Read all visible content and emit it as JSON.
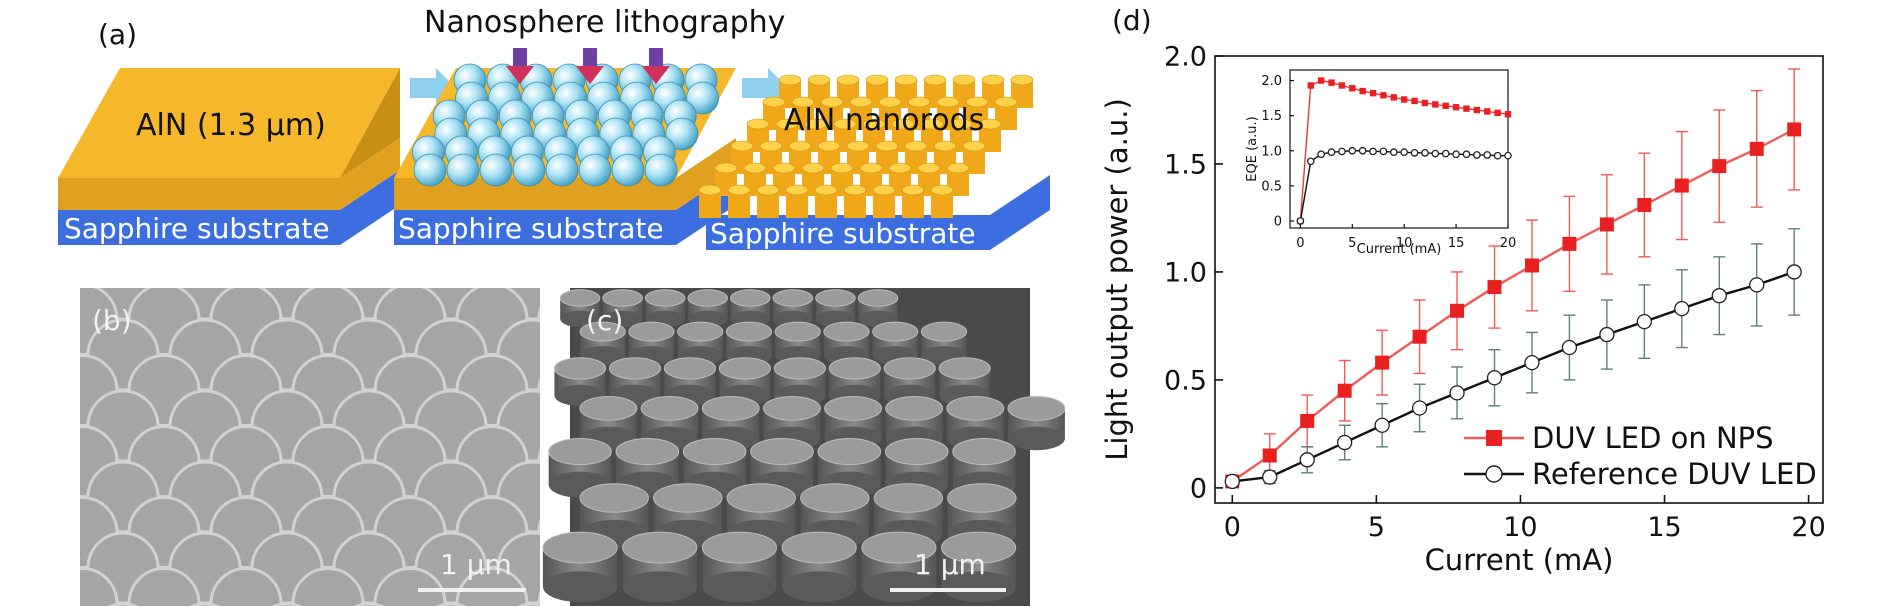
{
  "panels": {
    "a": {
      "label": "(a)",
      "process_title": "Nanosphere lithography",
      "slab1_label": "AlN (1.3 μm)",
      "slab3_label": "AlN nanorods",
      "substrate_label": "Sapphire substrate",
      "colors": {
        "aln": "#f5b82a",
        "sapphire": "#3d6ee0",
        "spheres": "#9fdcf0",
        "arrows": "#6f3fa3",
        "flow_arrow": "#8fd0ee"
      }
    },
    "b": {
      "label": "(b)",
      "scale_bar": "1 μm"
    },
    "c": {
      "label": "(c)",
      "scale_bar": "1 μm"
    },
    "d": {
      "label": "(d)"
    }
  },
  "chart_data": [
    {
      "type": "line",
      "xlabel": "Current (mA)",
      "ylabel": "Light output power (a.u.)",
      "xlim": [
        -0.6,
        20.5
      ],
      "ylim": [
        -0.07,
        2.0
      ],
      "xticks": [
        "0",
        "5",
        "10",
        "15",
        "20"
      ],
      "yticks": [
        "0",
        "0.5",
        "1.0",
        "1.5",
        "2.0"
      ],
      "legend_position": "bottom-right",
      "x": [
        0,
        1.3,
        2.6,
        3.9,
        5.2,
        6.5,
        7.8,
        9.1,
        10.4,
        11.7,
        13.0,
        14.3,
        15.6,
        16.9,
        18.2,
        19.5
      ],
      "series": [
        {
          "name": "DUV LED on NPS",
          "color": "#f25a5a",
          "marker": "filled-square",
          "values": [
            0.03,
            0.15,
            0.31,
            0.45,
            0.58,
            0.7,
            0.82,
            0.93,
            1.03,
            1.13,
            1.22,
            1.31,
            1.4,
            1.49,
            1.57,
            1.66
          ],
          "errors": [
            0.01,
            0.1,
            0.12,
            0.14,
            0.15,
            0.17,
            0.18,
            0.19,
            0.21,
            0.22,
            0.23,
            0.24,
            0.25,
            0.26,
            0.27,
            0.28
          ]
        },
        {
          "name": "Reference DUV LED",
          "color": "#111111",
          "marker": "open-circle",
          "values": [
            0.03,
            0.05,
            0.13,
            0.21,
            0.29,
            0.37,
            0.44,
            0.51,
            0.58,
            0.65,
            0.71,
            0.77,
            0.83,
            0.89,
            0.94,
            1.0
          ],
          "errors": [
            0.01,
            0.03,
            0.06,
            0.08,
            0.1,
            0.11,
            0.12,
            0.13,
            0.14,
            0.15,
            0.16,
            0.17,
            0.18,
            0.18,
            0.19,
            0.2
          ],
          "errbar_color": "#5f7f7f"
        }
      ]
    },
    {
      "type": "line",
      "inset": true,
      "xlabel": "Current (mA)",
      "ylabel": "EQE (a.u.)",
      "xlim": [
        -1,
        20
      ],
      "ylim": [
        -0.1,
        2.15
      ],
      "xticks": [
        "0",
        "5",
        "10",
        "15",
        "20"
      ],
      "yticks": [
        "0",
        "0.5",
        "1.0",
        "1.5",
        "2.0"
      ],
      "x": [
        0,
        1,
        2,
        3,
        4,
        5,
        6,
        7,
        8,
        9,
        10,
        11,
        12,
        13,
        14,
        15,
        16,
        17,
        18,
        19,
        20
      ],
      "series": [
        {
          "color": "#e83a3a",
          "marker": "filled-square",
          "values": [
            0.0,
            1.93,
            2.0,
            1.97,
            1.93,
            1.89,
            1.85,
            1.82,
            1.79,
            1.76,
            1.73,
            1.71,
            1.68,
            1.66,
            1.64,
            1.62,
            1.6,
            1.58,
            1.56,
            1.54,
            1.52
          ]
        },
        {
          "color": "#111111",
          "marker": "open-circle",
          "values": [
            0.0,
            0.85,
            0.95,
            0.98,
            0.99,
            1.0,
            1.0,
            0.99,
            0.99,
            0.98,
            0.98,
            0.97,
            0.97,
            0.96,
            0.96,
            0.95,
            0.95,
            0.94,
            0.94,
            0.93,
            0.93
          ]
        }
      ]
    }
  ]
}
